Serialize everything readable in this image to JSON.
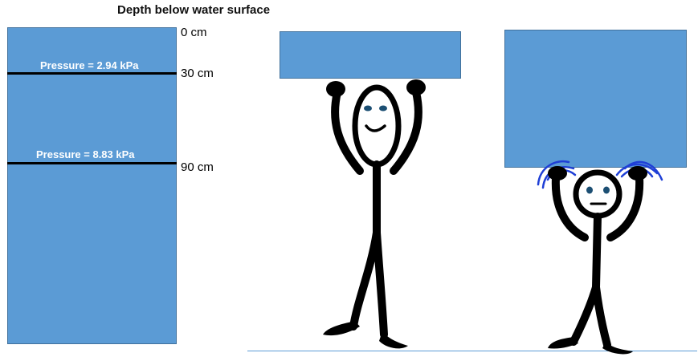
{
  "diagram": {
    "title": "Depth below water surface",
    "depth_marks": [
      {
        "label": "0 cm"
      },
      {
        "label": "30 cm"
      },
      {
        "label": "90 cm"
      }
    ],
    "pressure_readings": [
      {
        "label": "Pressure = 2.94 kPa"
      },
      {
        "label": "Pressure = 8.83 kPa"
      }
    ],
    "colors": {
      "water": "#5b9bd5",
      "water_border": "#41719c",
      "line": "#000000",
      "pressure_text": "#ffffff",
      "strain_marks": "#1f3fd6",
      "ground": "#5b9bd5"
    },
    "figures": [
      {
        "name": "happy-stick-figure",
        "expression": "smiling",
        "load": "small-block"
      },
      {
        "name": "strained-stick-figure",
        "expression": "neutral",
        "load": "large-block"
      }
    ]
  }
}
